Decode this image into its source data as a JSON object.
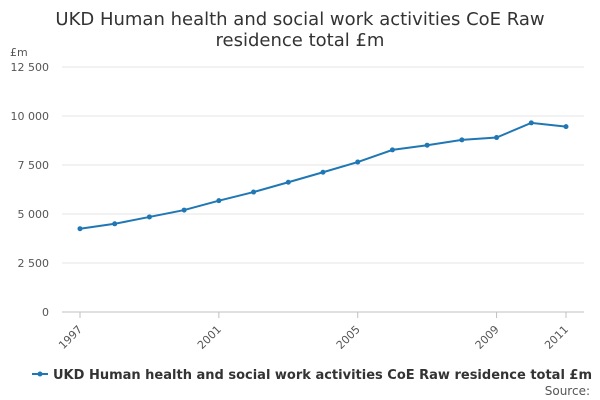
{
  "chart_data": {
    "type": "line",
    "title_lines": [
      "UKD Human health and social work activities CoE Raw",
      "residence total £m"
    ],
    "y_unit": "£m",
    "x": [
      1997,
      1998,
      1999,
      2000,
      2001,
      2002,
      2003,
      2004,
      2005,
      2006,
      2007,
      2008,
      2009,
      2010,
      2011
    ],
    "x_tick_labels": [
      "1997",
      "2001",
      "2005",
      "2009",
      "2011"
    ],
    "x_ticks": [
      1997,
      2001,
      2005,
      2009,
      2011
    ],
    "y_ticks": [
      0,
      2500,
      5000,
      7500,
      10000,
      12500
    ],
    "y_tick_labels": [
      "0",
      "2 500",
      "5 000",
      "7 500",
      "10 000",
      "12 500"
    ],
    "ylim": [
      0,
      12500
    ],
    "xlim": [
      1997,
      2011
    ],
    "grid": true,
    "legend_position": "bottom",
    "series": [
      {
        "name": "UKD Human health and social work activities CoE Raw residence total £m",
        "color": "#1f77b4",
        "values": [
          4250,
          4500,
          4850,
          5200,
          5680,
          6120,
          6620,
          7130,
          7650,
          8270,
          8510,
          8780,
          8900,
          9650,
          9460
        ]
      }
    ],
    "source_label": "Source:"
  }
}
